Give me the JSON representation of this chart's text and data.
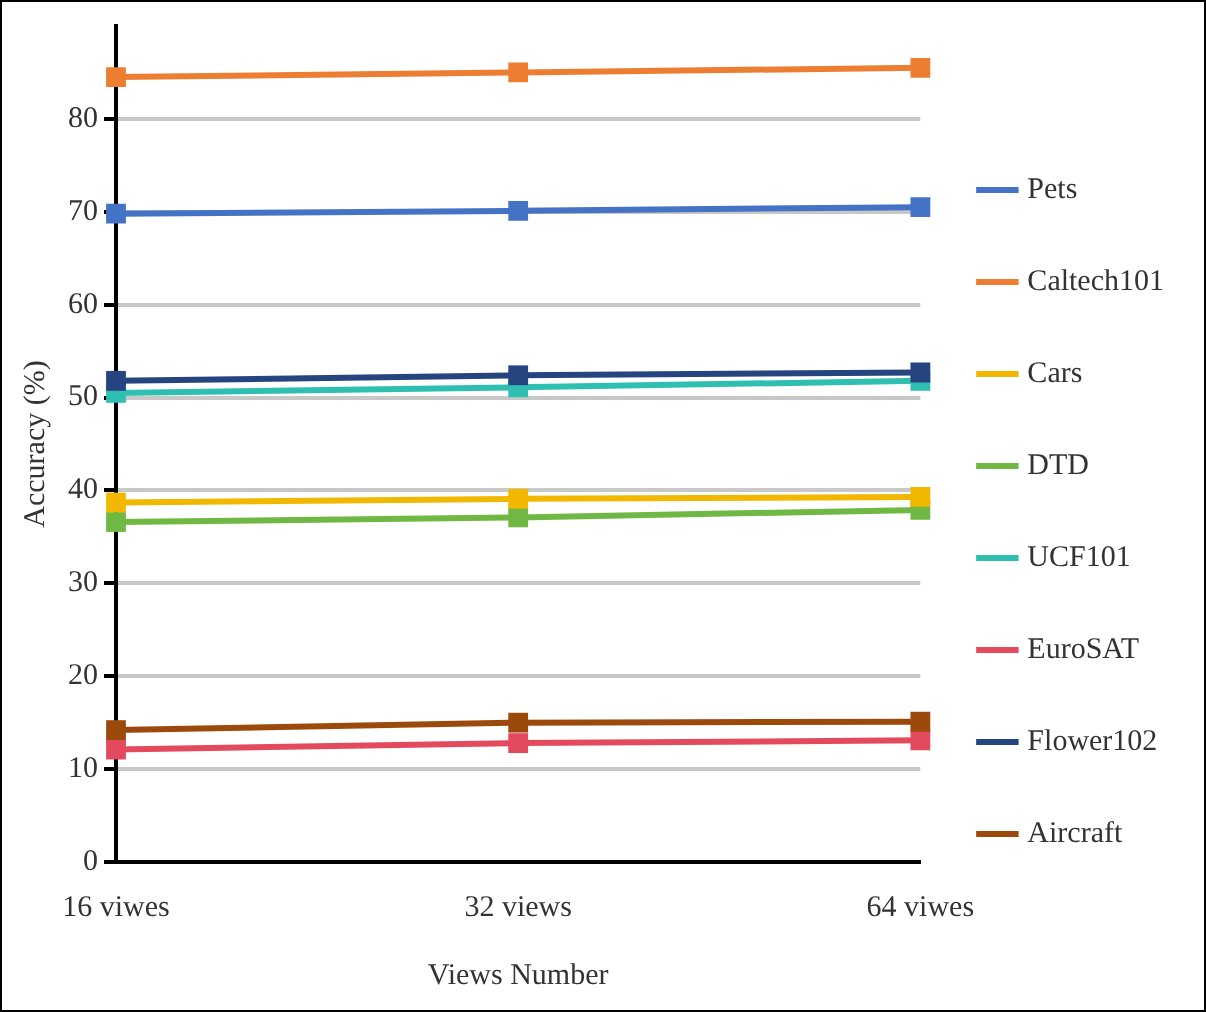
{
  "chart_data": {
    "type": "line",
    "xlabel": "Views Number",
    "ylabel": "Accuracy (%)",
    "categories": [
      "16 viwes",
      "32 views",
      "64 viwes"
    ],
    "ylim": [
      0,
      90
    ],
    "yticks": [
      0,
      10,
      20,
      30,
      40,
      50,
      60,
      70,
      80
    ],
    "grid": "y",
    "legend": "right",
    "marker": "square",
    "line_style": "solid",
    "series": [
      {
        "name": "Pets",
        "color": "#4472c4",
        "values": [
          69.8,
          70.1,
          70.5
        ]
      },
      {
        "name": "Caltech101",
        "color": "#ed7d31",
        "values": [
          84.5,
          85.0,
          85.5
        ]
      },
      {
        "name": "Cars",
        "color": "#f2b800",
        "values": [
          38.7,
          39.1,
          39.3
        ]
      },
      {
        "name": "DTD",
        "color": "#70b844",
        "values": [
          36.6,
          37.1,
          37.9
        ]
      },
      {
        "name": "UCF101",
        "color": "#2fbfb0",
        "values": [
          50.5,
          51.1,
          51.8
        ]
      },
      {
        "name": "EuroSAT",
        "color": "#e34a5e",
        "values": [
          12.1,
          12.8,
          13.1
        ]
      },
      {
        "name": "Flower102",
        "color": "#264480",
        "values": [
          51.8,
          52.4,
          52.7
        ]
      },
      {
        "name": "Aircraft",
        "color": "#9c4a0c",
        "values": [
          14.2,
          15.0,
          15.1
        ]
      }
    ]
  }
}
